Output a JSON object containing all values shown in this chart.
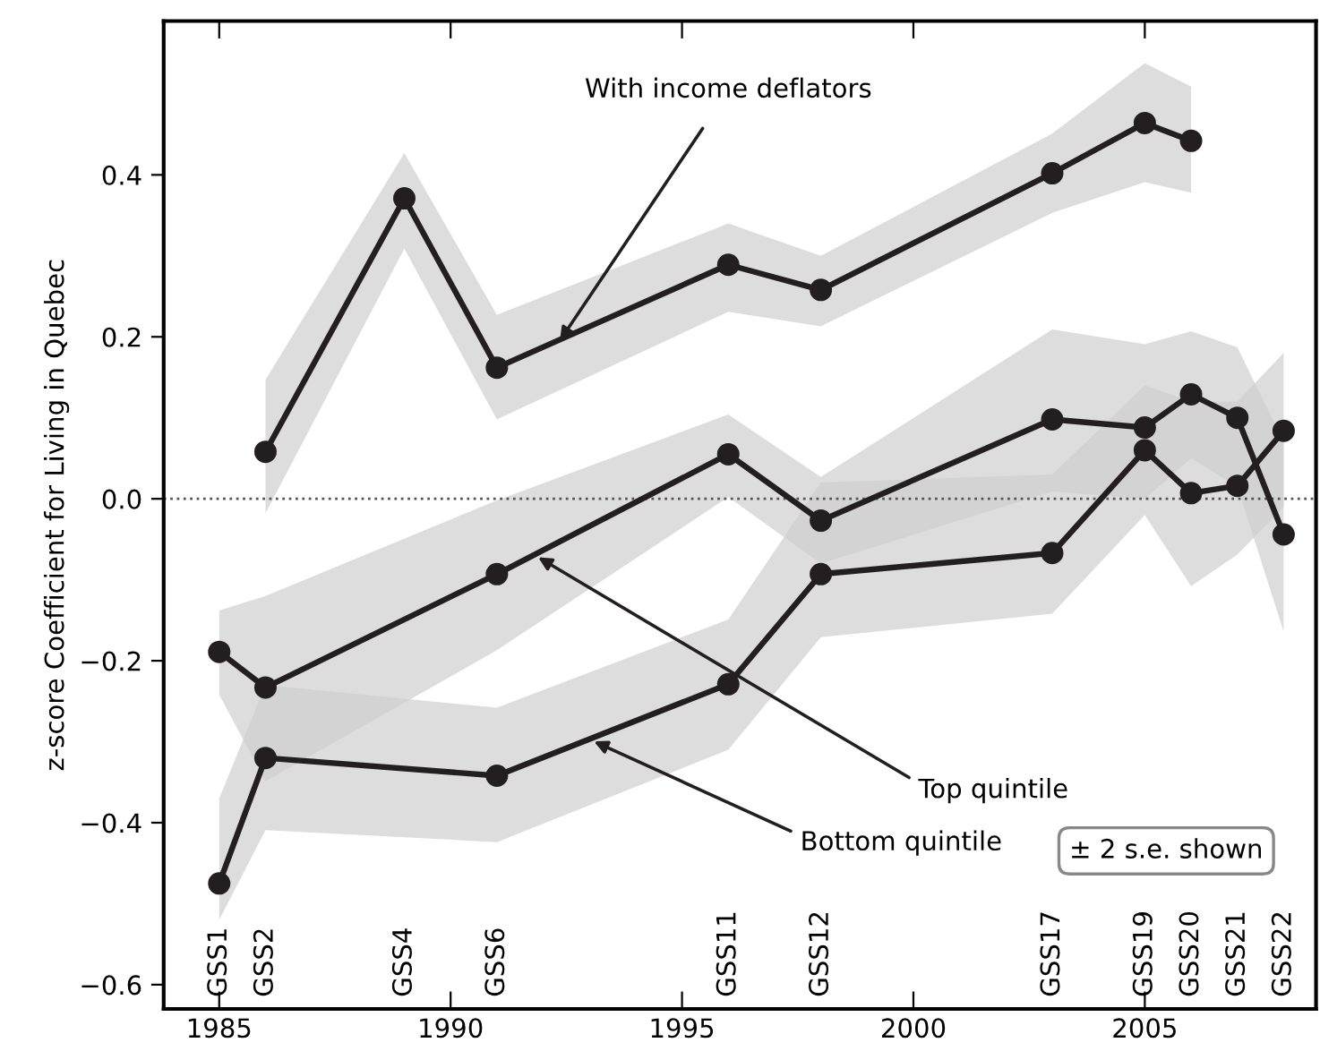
{
  "chart_data": {
    "type": "line",
    "ylabel": "z-score Coefficient for Living in Quebec",
    "xlim": [
      1983.8,
      2008.7
    ],
    "ylim": [
      -0.63,
      0.59
    ],
    "xticks": [
      1985,
      1990,
      1995,
      2000,
      2005
    ],
    "yticks": [
      {
        "value": -0.6,
        "label": "−0.6"
      },
      {
        "value": -0.4,
        "label": "−0.4"
      },
      {
        "value": -0.2,
        "label": "−0.2"
      },
      {
        "value": 0,
        "label": "0.0"
      },
      {
        "value": 0.2,
        "label": "0.2"
      },
      {
        "value": 0.4,
        "label": "0.4"
      }
    ],
    "grid": false,
    "legend": false,
    "marker": "circle",
    "line_style": "solid",
    "ref_lines": [
      {
        "axis": "y",
        "value": 0,
        "label": null,
        "color": "#555555",
        "line_style": "dotted"
      }
    ],
    "series": [
      {
        "color": "#231f20",
        "x": [
          1986,
          1989,
          1991,
          1996,
          1998,
          2003,
          2005,
          2006
        ],
        "values": [
          0.058,
          0.371,
          0.162,
          0.289,
          0.258,
          0.402,
          0.464,
          0.442
        ],
        "lower": [
          -0.018,
          0.309,
          0.098,
          0.231,
          0.213,
          0.353,
          0.391,
          0.378
        ],
        "upper": [
          0.147,
          0.427,
          0.227,
          0.34,
          0.3,
          0.451,
          0.538,
          0.509
        ]
      },
      {
        "color": "#231f20",
        "x": [
          1985,
          1986,
          1991,
          1996,
          1998,
          2003,
          2005,
          2006,
          2007,
          2008
        ],
        "values": [
          -0.189,
          -0.233,
          -0.093,
          0.055,
          -0.027,
          0.098,
          0.088,
          0.129,
          0.1,
          -0.044
        ],
        "lower": [
          -0.242,
          -0.349,
          -0.187,
          0.002,
          -0.08,
          0.009,
          0.0,
          0.05,
          0.015,
          -0.164
        ],
        "upper": [
          -0.138,
          -0.12,
          -0.002,
          0.104,
          0.027,
          0.209,
          0.191,
          0.207,
          0.187,
          0.07
        ]
      },
      {
        "color": "#231f20",
        "x": [
          1985,
          1986,
          1991,
          1996,
          1998,
          2003,
          2005,
          2006,
          2007,
          2008
        ],
        "values": [
          -0.475,
          -0.32,
          -0.342,
          -0.229,
          -0.093,
          -0.067,
          0.06,
          0.007,
          0.016,
          0.084
        ],
        "lower": [
          -0.52,
          -0.409,
          -0.424,
          -0.31,
          -0.171,
          -0.142,
          -0.02,
          -0.108,
          -0.069,
          -0.01
        ],
        "upper": [
          -0.37,
          -0.23,
          -0.258,
          -0.149,
          0.02,
          0.03,
          0.14,
          0.12,
          0.12,
          0.18
        ]
      }
    ],
    "annotations": [
      {
        "text": "With income deflators",
        "x": 1992.3,
        "y": 0.19
      },
      {
        "text": "Top quintile",
        "x": 1991.8,
        "y": -0.069
      },
      {
        "text": "Bottom quintile",
        "x": 1993.0,
        "y": -0.297
      },
      "± 2 s.e. shown",
      "GSS1",
      "GSS2",
      "GSS4",
      "GSS6",
      "GSS11",
      "GSS12",
      "GSS17",
      "GSS19",
      "GSS20",
      "GSS21",
      "GSS22"
    ]
  }
}
